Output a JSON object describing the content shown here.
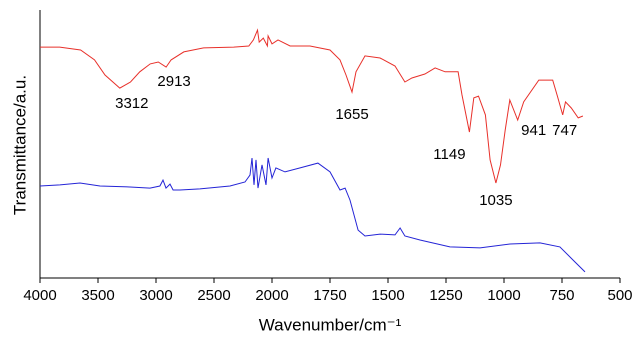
{
  "chart_data": {
    "type": "line",
    "x_label": "Wavenumber/cm⁻¹",
    "y_label": "Transmittance/a.u.",
    "xlim": [
      4000,
      500
    ],
    "xticks": [
      4000,
      3500,
      3000,
      2500,
      2000,
      1750,
      1500,
      1250,
      1000,
      750,
      500
    ],
    "ylim": [
      0,
      100
    ],
    "annotations": [
      3312,
      2913,
      1655,
      1149,
      1035,
      941,
      747
    ],
    "series": [
      {
        "color": "#e8302a",
        "x": [
          4000,
          3830,
          3650,
          3530,
          3440,
          3312,
          3220,
          3140,
          3050,
          2980,
          2913,
          2870,
          2760,
          2590,
          2330,
          2200,
          2160,
          2125,
          2110,
          2075,
          2040,
          2034,
          2000,
          1974,
          1922,
          1836,
          1750,
          1707,
          1681,
          1655,
          1638,
          1599,
          1534,
          1470,
          1427,
          1397,
          1341,
          1297,
          1254,
          1198,
          1181,
          1149,
          1130,
          1110,
          1080,
          1060,
          1035,
          1015,
          995,
          975,
          941,
          915,
          850,
          790,
          770,
          747,
          735,
          710,
          680,
          660
        ],
        "values": [
          86.8,
          86.8,
          85.7,
          82.0,
          76.3,
          71.4,
          73.7,
          77.5,
          80.5,
          81.2,
          79.3,
          82.0,
          85.0,
          86.5,
          86.8,
          87.2,
          89.5,
          93.2,
          88.7,
          90.2,
          87.2,
          91.0,
          88.0,
          89.5,
          87.2,
          87.2,
          85.7,
          82.0,
          76.3,
          69.9,
          77.5,
          83.5,
          82.7,
          79.7,
          73.7,
          75.2,
          76.7,
          79.0,
          77.5,
          77.5,
          68.8,
          54.9,
          67.7,
          68.4,
          61.3,
          44.4,
          35.7,
          42.5,
          55.6,
          66.9,
          59.4,
          66.2,
          74.4,
          74.4,
          68.4,
          61.3,
          66.2,
          63.9,
          60.2,
          60.9
        ]
      },
      {
        "color": "#2424d6",
        "x": [
          4000,
          3828,
          3655,
          3483,
          3224,
          3052,
          2966,
          2940,
          2914,
          2879,
          2853,
          2793,
          2621,
          2362,
          2233,
          2190,
          2172,
          2155,
          2138,
          2121,
          2086,
          2052,
          2034,
          2000,
          1983,
          1944,
          1879,
          1802,
          1750,
          1707,
          1685,
          1664,
          1629,
          1599,
          1534,
          1470,
          1448,
          1427,
          1362,
          1233,
          1103,
          974,
          845,
          759,
          694,
          651
        ],
        "values": [
          34.6,
          35.0,
          35.7,
          34.6,
          34.2,
          33.8,
          34.6,
          36.8,
          33.8,
          35.3,
          33.1,
          33.1,
          33.5,
          34.6,
          36.1,
          38.7,
          45.1,
          35.0,
          44.4,
          33.8,
          42.5,
          35.0,
          45.1,
          37.6,
          41.4,
          39.9,
          41.4,
          43.2,
          39.9,
          33.1,
          33.8,
          29.3,
          18.0,
          15.8,
          16.5,
          16.2,
          18.8,
          15.8,
          14.3,
          11.7,
          11.3,
          12.8,
          13.2,
          11.7,
          6.0,
          2.3
        ]
      }
    ]
  }
}
